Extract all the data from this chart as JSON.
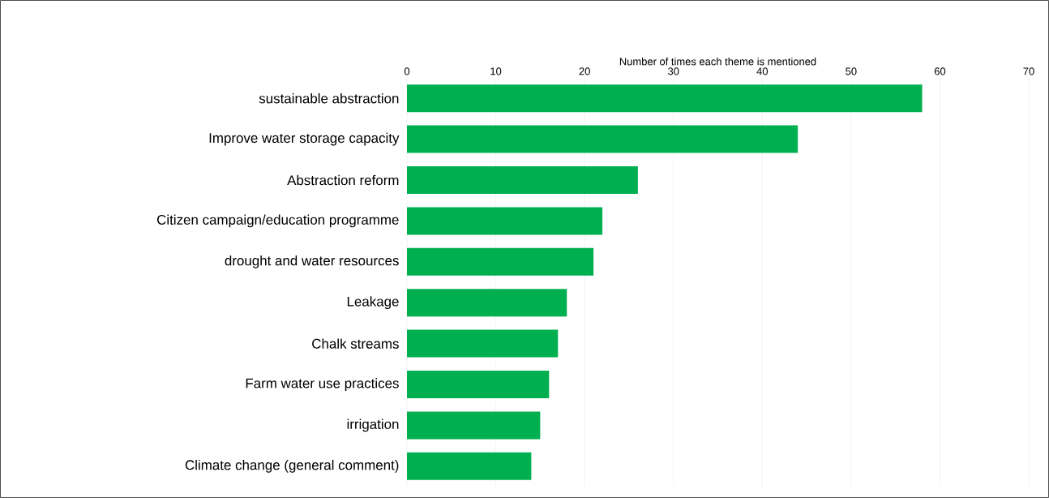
{
  "chart_data": {
    "type": "bar",
    "orientation": "horizontal",
    "xlabel": "Number of times each theme is mentioned",
    "categories": [
      "sustainable abstraction",
      "Improve water storage capacity",
      "Abstraction reform",
      "Citizen campaign/education programme",
      "drought and water resources",
      "Leakage",
      "Chalk streams",
      "Farm water use practices",
      "irrigation",
      "Climate change (general comment)"
    ],
    "values": [
      58,
      44,
      26,
      22,
      21,
      18,
      17,
      16,
      15,
      14
    ],
    "color": "#00b050",
    "xlim": [
      0,
      70
    ],
    "xticks": [
      0,
      10,
      20,
      30,
      40,
      50,
      60,
      70
    ],
    "grid": "x"
  }
}
